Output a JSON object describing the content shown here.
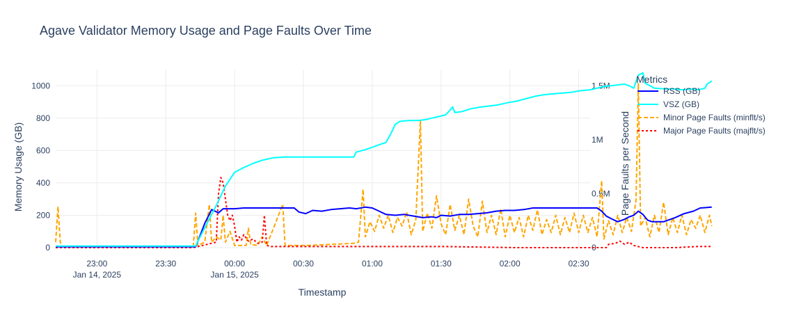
{
  "chart_data": {
    "type": "line",
    "title": "Agave Validator Memory Usage and Page Faults Over Time",
    "xlabel": "Timestamp",
    "ylabel": "Memory Usage (GB)",
    "y2label": "Page Faults per Second",
    "legend_title": "Metrics",
    "legend_position": "right",
    "grid": true,
    "x_range_minutes": [
      0,
      233
    ],
    "ylim": [
      0,
      1100
    ],
    "y2lim": [
      0,
      1.65
    ],
    "x_ticks": [
      {
        "min": 18,
        "label1": "23:00",
        "label2": "Jan 14, 2025"
      },
      {
        "min": 48,
        "label1": "23:30",
        "label2": ""
      },
      {
        "min": 78,
        "label1": "00:00",
        "label2": "Jan 15, 2025"
      },
      {
        "min": 108,
        "label1": "00:30",
        "label2": ""
      },
      {
        "min": 138,
        "label1": "01:00",
        "label2": ""
      },
      {
        "min": 168,
        "label1": "01:30",
        "label2": ""
      },
      {
        "min": 198,
        "label1": "02:00",
        "label2": ""
      },
      {
        "min": 228,
        "label1": "02:30",
        "label2": ""
      }
    ],
    "y_ticks": [
      0,
      200,
      400,
      600,
      800,
      1000
    ],
    "y2_ticks": [
      {
        "value": 0,
        "label": "0"
      },
      {
        "value": 0.5,
        "label": "0.5M"
      },
      {
        "value": 1.0,
        "label": "1M"
      },
      {
        "value": 1.5,
        "label": "1.5M"
      }
    ],
    "series": [
      {
        "name": "VSZ (GB)",
        "axis": "y",
        "color": "#00ffff",
        "dash": "solid",
        "points": [
          [
            0,
            10
          ],
          [
            60,
            10
          ],
          [
            61,
            10
          ],
          [
            62,
            40
          ],
          [
            66,
            150
          ],
          [
            70,
            260
          ],
          [
            74,
            380
          ],
          [
            78,
            465
          ],
          [
            82,
            495
          ],
          [
            86,
            520
          ],
          [
            90,
            540
          ],
          [
            95,
            555
          ],
          [
            100,
            560
          ],
          [
            110,
            560
          ],
          [
            120,
            560
          ],
          [
            130,
            560
          ],
          [
            131,
            590
          ],
          [
            135,
            605
          ],
          [
            138,
            620
          ],
          [
            141,
            635
          ],
          [
            144,
            650
          ],
          [
            146,
            700
          ],
          [
            148,
            760
          ],
          [
            150,
            780
          ],
          [
            154,
            785
          ],
          [
            158,
            785
          ],
          [
            161,
            790
          ],
          [
            164,
            800
          ],
          [
            167,
            810
          ],
          [
            170,
            820
          ],
          [
            172,
            850
          ],
          [
            173,
            870
          ],
          [
            174,
            835
          ],
          [
            177,
            840
          ],
          [
            181,
            858
          ],
          [
            185,
            868
          ],
          [
            189,
            875
          ],
          [
            193,
            882
          ],
          [
            197,
            895
          ],
          [
            201,
            905
          ],
          [
            205,
            920
          ],
          [
            209,
            935
          ],
          [
            213,
            945
          ],
          [
            217,
            950
          ],
          [
            221,
            955
          ],
          [
            225,
            960
          ],
          [
            229,
            970
          ],
          [
            233,
            975
          ],
          [
            236,
            985
          ],
          [
            239,
            995
          ],
          [
            242,
            1000
          ],
          [
            245,
            1005
          ],
          [
            248,
            1010
          ],
          [
            250,
            1000
          ],
          [
            252,
            985
          ],
          [
            254,
            1065
          ],
          [
            256,
            1080
          ],
          [
            257,
            1015
          ],
          [
            259,
            1000
          ],
          [
            261,
            985
          ],
          [
            266,
            980
          ],
          [
            270,
            980
          ],
          [
            273,
            975
          ],
          [
            278,
            980
          ],
          [
            280,
            975
          ],
          [
            283,
            985
          ],
          [
            284,
            1010
          ],
          [
            286,
            1030
          ]
        ]
      },
      {
        "name": "RSS (GB)",
        "axis": "y",
        "color": "#0000ff",
        "dash": "solid",
        "points": [
          [
            0,
            5
          ],
          [
            61,
            5
          ],
          [
            62,
            40
          ],
          [
            65,
            150
          ],
          [
            68,
            235
          ],
          [
            71,
            215
          ],
          [
            73,
            240
          ],
          [
            78,
            240
          ],
          [
            82,
            245
          ],
          [
            90,
            245
          ],
          [
            95,
            245
          ],
          [
            100,
            245
          ],
          [
            104,
            245
          ],
          [
            106,
            220
          ],
          [
            109,
            210
          ],
          [
            112,
            230
          ],
          [
            116,
            225
          ],
          [
            120,
            235
          ],
          [
            124,
            240
          ],
          [
            128,
            245
          ],
          [
            131,
            240
          ],
          [
            135,
            250
          ],
          [
            138,
            245
          ],
          [
            141,
            225
          ],
          [
            144,
            205
          ],
          [
            148,
            200
          ],
          [
            152,
            205
          ],
          [
            156,
            195
          ],
          [
            160,
            185
          ],
          [
            164,
            190
          ],
          [
            166,
            185
          ],
          [
            168,
            200
          ],
          [
            172,
            195
          ],
          [
            176,
            205
          ],
          [
            180,
            205
          ],
          [
            184,
            210
          ],
          [
            188,
            215
          ],
          [
            192,
            225
          ],
          [
            196,
            230
          ],
          [
            200,
            230
          ],
          [
            204,
            235
          ],
          [
            208,
            245
          ],
          [
            212,
            245
          ],
          [
            216,
            245
          ],
          [
            220,
            245
          ],
          [
            224,
            245
          ],
          [
            228,
            245
          ],
          [
            232,
            245
          ],
          [
            236,
            245
          ],
          [
            238,
            225
          ],
          [
            240,
            195
          ],
          [
            242,
            180
          ],
          [
            245,
            160
          ],
          [
            248,
            175
          ],
          [
            250,
            190
          ],
          [
            252,
            200
          ],
          [
            254,
            225
          ],
          [
            256,
            205
          ],
          [
            258,
            170
          ],
          [
            260,
            160
          ],
          [
            265,
            160
          ],
          [
            270,
            185
          ],
          [
            274,
            210
          ],
          [
            278,
            225
          ],
          [
            281,
            245
          ],
          [
            286,
            250
          ]
        ]
      },
      {
        "name": "Minor Page Faults (minflt/s)",
        "axis": "y2",
        "color": "#ffa500",
        "dash": "dash",
        "points": [
          [
            0,
            0.05
          ],
          [
            1,
            0.38
          ],
          [
            2,
            0.05
          ],
          [
            3,
            0.01
          ],
          [
            60,
            0.01
          ],
          [
            61,
            0.32
          ],
          [
            62,
            0.02
          ],
          [
            65,
            0.05
          ],
          [
            67,
            0.4
          ],
          [
            68,
            0.05
          ],
          [
            70,
            0.1
          ],
          [
            72,
            0.07
          ],
          [
            73,
            0.3
          ],
          [
            74,
            0.05
          ],
          [
            76,
            0.15
          ],
          [
            78,
            0.02
          ],
          [
            83,
            0.02
          ],
          [
            84,
            0.18
          ],
          [
            85,
            0.03
          ],
          [
            88,
            0.02
          ],
          [
            90,
            0.1
          ],
          [
            92,
            0.02
          ],
          [
            99,
            0.4
          ],
          [
            100,
            0.02
          ],
          [
            110,
            0.02
          ],
          [
            130,
            0.04
          ],
          [
            132,
            0.05
          ],
          [
            134,
            0.54
          ],
          [
            135,
            0.1
          ],
          [
            137,
            0.24
          ],
          [
            139,
            0.15
          ],
          [
            141,
            0.3
          ],
          [
            143,
            0.18
          ],
          [
            145,
            0.3
          ],
          [
            147,
            0.14
          ],
          [
            149,
            0.28
          ],
          [
            151,
            0.2
          ],
          [
            153,
            0.33
          ],
          [
            155,
            0.12
          ],
          [
            157,
            0.26
          ],
          [
            159,
            1.18
          ],
          [
            160,
            0.15
          ],
          [
            162,
            0.32
          ],
          [
            164,
            0.18
          ],
          [
            166,
            0.48
          ],
          [
            168,
            0.22
          ],
          [
            170,
            0.12
          ],
          [
            172,
            0.4
          ],
          [
            174,
            0.16
          ],
          [
            176,
            0.3
          ],
          [
            178,
            0.12
          ],
          [
            180,
            0.45
          ],
          [
            182,
            0.2
          ],
          [
            184,
            0.1
          ],
          [
            186,
            0.43
          ],
          [
            188,
            0.14
          ],
          [
            190,
            0.3
          ],
          [
            192,
            0.12
          ],
          [
            194,
            0.36
          ],
          [
            196,
            0.1
          ],
          [
            198,
            0.3
          ],
          [
            200,
            0.14
          ],
          [
            202,
            0.28
          ],
          [
            204,
            0.1
          ],
          [
            206,
            0.3
          ],
          [
            208,
            0.16
          ],
          [
            210,
            0.35
          ],
          [
            212,
            0.12
          ],
          [
            214,
            0.26
          ],
          [
            216,
            0.14
          ],
          [
            218,
            0.3
          ],
          [
            220,
            0.12
          ],
          [
            222,
            0.28
          ],
          [
            224,
            0.14
          ],
          [
            226,
            0.32
          ],
          [
            228,
            0.14
          ],
          [
            230,
            0.3
          ],
          [
            232,
            0.14
          ],
          [
            234,
            0.28
          ],
          [
            236,
            0.1
          ],
          [
            238,
            0.62
          ],
          [
            239,
            0.08
          ],
          [
            241,
            0.25
          ],
          [
            243,
            0.12
          ],
          [
            245,
            0.3
          ],
          [
            247,
            0.14
          ],
          [
            249,
            0.28
          ],
          [
            251,
            0.15
          ],
          [
            253,
            0.44
          ],
          [
            254,
            1.52
          ],
          [
            255,
            0.2
          ],
          [
            257,
            0.28
          ],
          [
            259,
            0.1
          ],
          [
            261,
            0.3
          ],
          [
            263,
            0.14
          ],
          [
            265,
            0.42
          ],
          [
            267,
            0.12
          ],
          [
            269,
            0.28
          ],
          [
            271,
            0.14
          ],
          [
            273,
            0.3
          ],
          [
            275,
            0.12
          ],
          [
            277,
            0.26
          ],
          [
            279,
            0.18
          ],
          [
            281,
            0.3
          ],
          [
            283,
            0.14
          ],
          [
            285,
            0.3
          ],
          [
            286,
            0.2
          ]
        ]
      },
      {
        "name": "Major Page Faults (majflt/s)",
        "axis": "y2",
        "color": "#ff0000",
        "dash": "dot",
        "points": [
          [
            0,
            0.0
          ],
          [
            60,
            0.0
          ],
          [
            70,
            0.05
          ],
          [
            71,
            0.5
          ],
          [
            72,
            0.65
          ],
          [
            73,
            0.6
          ],
          [
            74,
            0.45
          ],
          [
            75,
            0.3
          ],
          [
            76,
            0.25
          ],
          [
            77,
            0.3
          ],
          [
            78,
            0.2
          ],
          [
            79,
            0.05
          ],
          [
            80,
            0.1
          ],
          [
            81,
            0.07
          ],
          [
            82,
            0.12
          ],
          [
            84,
            0.06
          ],
          [
            86,
            0.08
          ],
          [
            88,
            0.04
          ],
          [
            90,
            0.05
          ],
          [
            91,
            0.3
          ],
          [
            92,
            0.02
          ],
          [
            94,
            0.01
          ],
          [
            130,
            0.01
          ],
          [
            140,
            0.01
          ],
          [
            150,
            0.01
          ],
          [
            170,
            0.01
          ],
          [
            200,
            0.0
          ],
          [
            240,
            0.0
          ],
          [
            241,
            0.03
          ],
          [
            244,
            0.04
          ],
          [
            246,
            0.06
          ],
          [
            248,
            0.03
          ],
          [
            250,
            0.05
          ],
          [
            252,
            0.02
          ],
          [
            256,
            0.0
          ],
          [
            270,
            0.0
          ],
          [
            280,
            0.01
          ],
          [
            286,
            0.01
          ]
        ]
      }
    ]
  }
}
